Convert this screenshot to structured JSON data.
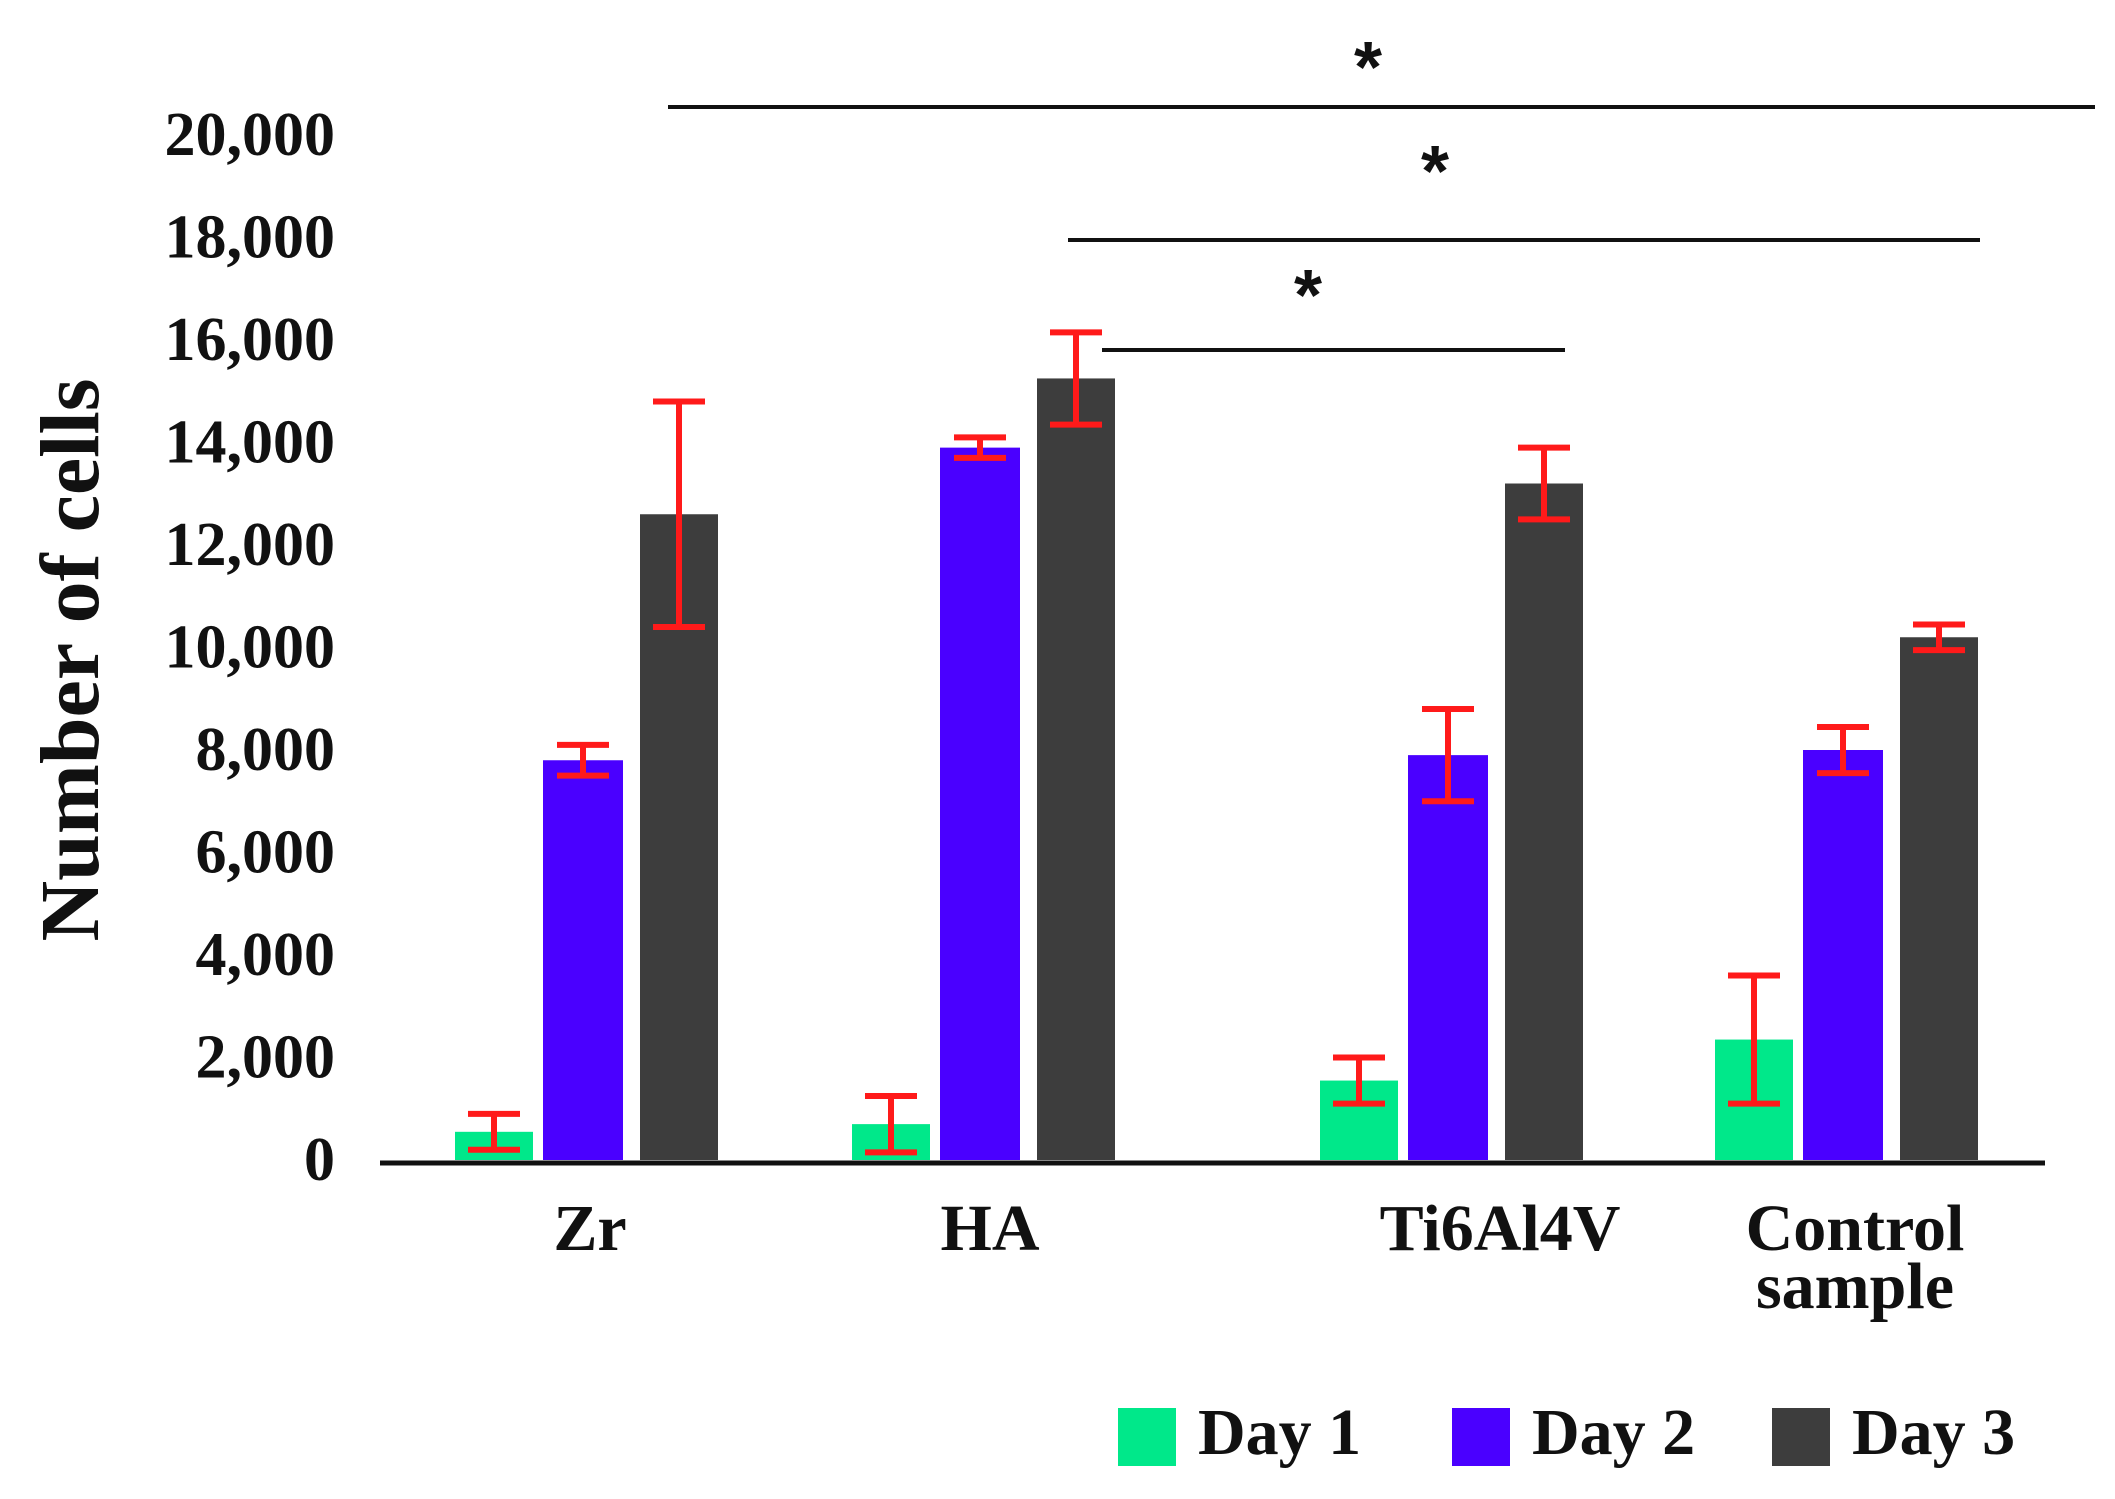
{
  "chart_data": {
    "type": "bar",
    "title": "",
    "xlabel": "",
    "ylabel": "Number of cells",
    "ylim": [
      0,
      20000
    ],
    "yticks": [
      0,
      2000,
      4000,
      6000,
      8000,
      10000,
      12000,
      14000,
      16000,
      18000,
      20000
    ],
    "ytick_labels": [
      "0",
      "2,000",
      "4,000",
      "6,000",
      "8,000",
      "10,000",
      "12,000",
      "14,000",
      "16,000",
      "18,000",
      "20,000"
    ],
    "categories": [
      "Zr",
      "HA",
      "Ti6Al4V",
      "Control sample"
    ],
    "category_label_lines": [
      [
        "Zr"
      ],
      [
        "HA"
      ],
      [
        "Ti6Al4V"
      ],
      [
        "Control",
        "sample"
      ]
    ],
    "series": [
      {
        "name": "Day 1",
        "color": "#00e88a",
        "values": [
          550,
          700,
          1550,
          2350
        ],
        "errors": [
          350,
          550,
          450,
          1250
        ]
      },
      {
        "name": "Day 2",
        "color": "#4a00ff",
        "values": [
          7800,
          13900,
          7900,
          8000
        ],
        "errors": [
          300,
          200,
          900,
          450
        ]
      },
      {
        "name": "Day 3",
        "color": "#3d3d3d",
        "values": [
          12600,
          15250,
          13200,
          10200
        ],
        "errors": [
          2200,
          900,
          700,
          250
        ]
      }
    ],
    "error_color": "#ff1a1a",
    "legend": {
      "position": "bottom-right",
      "labels": [
        "Day 1",
        "Day 2",
        "Day 3"
      ]
    },
    "significance": [
      {
        "label": "*",
        "from": "Zr Day 3",
        "to": "Control sample Day 3"
      },
      {
        "label": "*",
        "from": "HA Day 3",
        "to": "Control sample Day 3"
      },
      {
        "label": "*",
        "from": "HA Day 3",
        "to": "Ti6Al4V Day 3"
      }
    ],
    "grid": false
  }
}
